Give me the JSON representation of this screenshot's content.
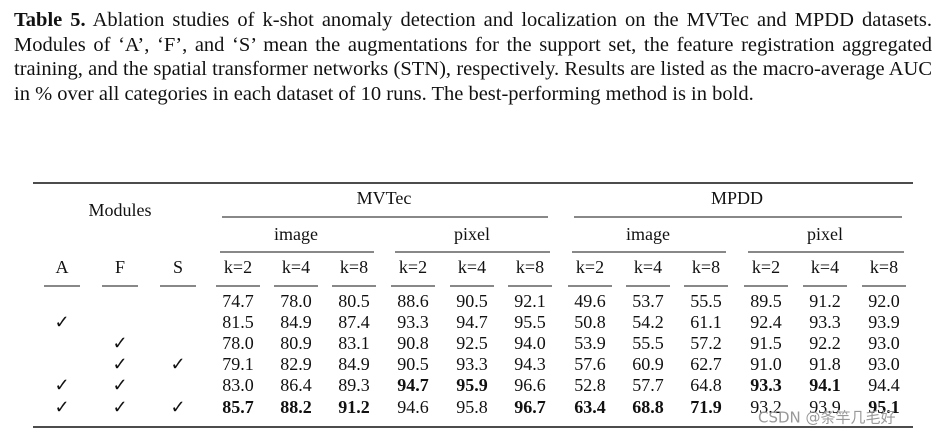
{
  "caption": {
    "label": "Table 5.",
    "text": "Ablation studies of k-shot anomaly detection and localization on the MVTec and MPDD datasets. Modules of ‘A’, ‘F’, and ‘S’ mean the augmentations for the support set, the feature registration aggregated training, and the spatial transformer networks (STN), respectively. Results are listed as the macro-average AUC in % over all categories in each dataset of 10 runs. The best-performing method is in bold."
  },
  "table": {
    "modules_label": "Modules",
    "module_names": [
      "A",
      "F",
      "S"
    ],
    "groups": [
      {
        "name": "MVTec",
        "subgroups": [
          "image",
          "pixel"
        ]
      },
      {
        "name": "MPDD",
        "subgroups": [
          "image",
          "pixel"
        ]
      }
    ],
    "k_labels": [
      "k=2",
      "k=4",
      "k=8"
    ],
    "check": "✓",
    "rows": [
      {
        "modules": [
          false,
          false,
          false
        ],
        "values": [
          "74.7",
          "78.0",
          "80.5",
          "88.6",
          "90.5",
          "92.1",
          "49.6",
          "53.7",
          "55.5",
          "89.5",
          "91.2",
          "92.0"
        ],
        "bold": []
      },
      {
        "modules": [
          true,
          false,
          false
        ],
        "values": [
          "81.5",
          "84.9",
          "87.4",
          "93.3",
          "94.7",
          "95.5",
          "50.8",
          "54.2",
          "61.1",
          "92.4",
          "93.3",
          "93.9"
        ],
        "bold": []
      },
      {
        "modules": [
          false,
          true,
          false
        ],
        "values": [
          "78.0",
          "80.9",
          "83.1",
          "90.8",
          "92.5",
          "94.0",
          "53.9",
          "55.5",
          "57.2",
          "91.5",
          "92.2",
          "93.0"
        ],
        "bold": []
      },
      {
        "modules": [
          false,
          true,
          true
        ],
        "values": [
          "79.1",
          "82.9",
          "84.9",
          "90.5",
          "93.3",
          "94.3",
          "57.6",
          "60.9",
          "62.7",
          "91.0",
          "91.8",
          "93.0"
        ],
        "bold": []
      },
      {
        "modules": [
          true,
          true,
          false
        ],
        "values": [
          "83.0",
          "86.4",
          "89.3",
          "94.7",
          "95.9",
          "96.6",
          "52.8",
          "57.7",
          "64.8",
          "93.3",
          "94.1",
          "94.4"
        ],
        "bold": [
          3,
          4,
          9,
          10
        ]
      },
      {
        "modules": [
          true,
          true,
          true
        ],
        "values": [
          "85.7",
          "88.2",
          "91.2",
          "94.6",
          "95.8",
          "96.7",
          "63.4",
          "68.8",
          "71.9",
          "93.2",
          "93.9",
          "95.1"
        ],
        "bold": [
          0,
          1,
          2,
          5,
          6,
          7,
          8,
          11
        ]
      }
    ]
  },
  "watermark": "CSDN @条竿几毛好"
}
